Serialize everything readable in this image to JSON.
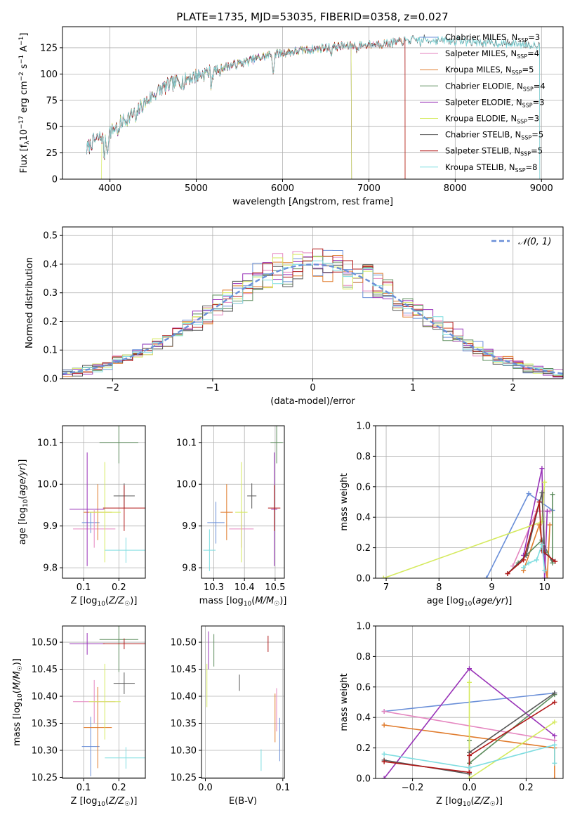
{
  "figure_title": "PLATE=1735, MJD=53035, FIBERID=0358, z=0.027",
  "colors": {
    "Chabrier MILES": "#6a8fd8",
    "Salpeter MILES": "#e587c0",
    "Kroupa MILES": "#e07b2c",
    "Chabrier ELODIE": "#5e8d5e",
    "Salpeter ELODIE": "#9933b8",
    "Kroupa ELODIE": "#d5ea5e",
    "Chabrier STELIB": "#585858",
    "Salpeter STELIB": "#b01818",
    "Kroupa STELIB": "#7fdde0",
    "gaussian": "#6a8fd8"
  },
  "chart_data": [
    {
      "type": "line",
      "id": "spectrum",
      "xlabel": "wavelength [Angstrom, rest frame]",
      "ylabel": "Flux [f_λ10^-17 erg cm^-2 s^-1 A^-1]",
      "xlim": [
        3450,
        9250
      ],
      "ylim": [
        0,
        145
      ],
      "xticks": [
        4000,
        5000,
        6000,
        7000,
        8000,
        9000
      ],
      "yticks": [
        0,
        25,
        50,
        75,
        100,
        125
      ],
      "legend_position": "top-right",
      "legend": [
        {
          "label": "Chabrier MILES, N",
          "sub": "SSP",
          "suffix": "=3",
          "model": "Chabrier MILES"
        },
        {
          "label": "Salpeter MILES, N",
          "sub": "SSP",
          "suffix": "=4",
          "model": "Salpeter MILES"
        },
        {
          "label": "Kroupa MILES, N",
          "sub": "SSP",
          "suffix": "=5",
          "model": "Kroupa MILES"
        },
        {
          "label": "Chabrier ELODIE, N",
          "sub": "SSP",
          "suffix": "=4",
          "model": "Chabrier ELODIE"
        },
        {
          "label": "Salpeter ELODIE, N",
          "sub": "SSP",
          "suffix": "=3",
          "model": "Salpeter ELODIE"
        },
        {
          "label": "Kroupa ELODIE, N",
          "sub": "SSP",
          "suffix": "=3",
          "model": "Kroupa ELODIE"
        },
        {
          "label": "Chabrier STELIB, N",
          "sub": "SSP",
          "suffix": "=5",
          "model": "Chabrier STELIB"
        },
        {
          "label": "Salpeter STELIB, N",
          "sub": "SSP",
          "suffix": "=5",
          "model": "Salpeter STELIB"
        },
        {
          "label": "Kroupa STELIB, N",
          "sub": "SSP",
          "suffix": "=8",
          "model": "Kroupa STELIB"
        }
      ],
      "continuum": {
        "x": [
          3730,
          3800,
          3900,
          4000,
          4100,
          4200,
          4300,
          4400,
          4500,
          4600,
          4700,
          4800,
          4900,
          5000,
          5100,
          5200,
          5300,
          5400,
          5500,
          5600,
          5700,
          5800,
          5900,
          6000,
          6200,
          6400,
          6600,
          6800,
          7000,
          7200,
          7400,
          7600
        ],
        "y": [
          28,
          36,
          40,
          45,
          52,
          58,
          64,
          72,
          80,
          86,
          90,
          93,
          96,
          98,
          101,
          103,
          106,
          108,
          110,
          112,
          115,
          117,
          119,
          120,
          122,
          124,
          126,
          127,
          128,
          129,
          131,
          133
        ]
      },
      "absorption_lines": [
        {
          "x": 3934,
          "depth": 20
        },
        {
          "x": 3969,
          "depth": 18
        },
        {
          "x": 4101,
          "depth": 10
        },
        {
          "x": 4305,
          "depth": 12
        },
        {
          "x": 4861,
          "depth": 6
        },
        {
          "x": 5175,
          "depth": 12
        },
        {
          "x": 5270,
          "depth": 5
        },
        {
          "x": 5893,
          "depth": 18
        },
        {
          "x": 6563,
          "depth": 6
        },
        {
          "x": 6867,
          "depth": 5
        },
        {
          "x": 7600,
          "depth": 6
        }
      ],
      "series_end": {
        "Chabrier MILES": 7420,
        "Salpeter MILES": 7420,
        "Kroupa MILES": 7420,
        "Chabrier ELODIE": 6800,
        "Salpeter ELODIE": 6800,
        "Kroupa ELODIE": 6800,
        "Chabrier STELIB": 8980,
        "Salpeter STELIB": 7420,
        "Kroupa STELIB": 8980
      },
      "series_start": {
        "Kroupa ELODIE": 3900
      }
    },
    {
      "type": "histogram",
      "id": "residuals",
      "xlabel": "(data-model)/error",
      "ylabel": "Normed distribution",
      "xlim": [
        -2.5,
        2.5
      ],
      "ylim": [
        0,
        0.53
      ],
      "xticks": [
        -2,
        -1,
        0,
        1,
        2
      ],
      "yticks": [
        0.0,
        0.1,
        0.2,
        0.3,
        0.4,
        0.5
      ],
      "bin_width": 0.1,
      "gaussian_label": "𝒩(0, 1)",
      "legend_position": "top-right"
    },
    {
      "type": "scatter",
      "id": "age_vs_z",
      "xlabel": "Z [log10(Z/Z☉)]",
      "ylabel": "age [log10(age/yr)]",
      "xlim": [
        0.04,
        0.275
      ],
      "ylim": [
        9.775,
        10.14
      ],
      "xticks": [
        0.1,
        0.2
      ],
      "yticks": [
        9.8,
        9.9,
        10.0,
        10.1
      ],
      "points": [
        {
          "model": "Chabrier MILES",
          "x": 0.12,
          "y": 9.908,
          "xerr": 0.025,
          "yerr": 0.025
        },
        {
          "model": "Salpeter MILES",
          "x": 0.13,
          "y": 9.893,
          "xerr": 0.06,
          "yerr": 0.045
        },
        {
          "model": "Kroupa MILES",
          "x": 0.14,
          "y": 9.933,
          "xerr": 0.04,
          "yerr": 0.067
        },
        {
          "model": "Chabrier ELODIE",
          "x": 0.2,
          "y": 10.1,
          "xerr": 0.055,
          "yerr": 0.05
        },
        {
          "model": "Salpeter ELODIE",
          "x": 0.11,
          "y": 9.94,
          "xerr": 0.05,
          "yerr": 0.136
        },
        {
          "model": "Kroupa ELODIE",
          "x": 0.16,
          "y": 9.933,
          "xerr": 0.045,
          "yerr": 0.12
        },
        {
          "model": "Chabrier STELIB",
          "x": 0.215,
          "y": 9.972,
          "xerr": 0.03,
          "yerr": 0.03
        },
        {
          "model": "Salpeter STELIB",
          "x": 0.215,
          "y": 9.943,
          "xerr": 0.06,
          "yerr": 0.055
        },
        {
          "model": "Kroupa STELIB",
          "x": 0.22,
          "y": 9.842,
          "xerr": 0.06,
          "yerr": 0.03
        }
      ]
    },
    {
      "type": "scatter",
      "id": "age_vs_mass",
      "xlabel": "mass [log10(M/M☉)]",
      "ylabel": "",
      "xlim": [
        10.26,
        10.53
      ],
      "ylim": [
        9.775,
        10.14
      ],
      "xticks": [
        10.3,
        10.4,
        10.5
      ],
      "yticks": [
        9.8,
        9.9,
        10.0,
        10.1
      ],
      "points": [
        {
          "model": "Chabrier MILES",
          "x": 10.307,
          "y": 9.908,
          "xerr": 0.028,
          "yerr": 0.05
        },
        {
          "model": "Salpeter MILES",
          "x": 10.39,
          "y": 9.893,
          "xerr": 0.04,
          "yerr": 0.045
        },
        {
          "model": "Kroupa MILES",
          "x": 10.342,
          "y": 9.933,
          "xerr": 0.02,
          "yerr": 0.067
        },
        {
          "model": "Chabrier ELODIE",
          "x": 10.505,
          "y": 10.1,
          "xerr": 0.02,
          "yerr": 0.05
        },
        {
          "model": "Salpeter ELODIE",
          "x": 10.497,
          "y": 9.94,
          "xerr": 0.01,
          "yerr": 0.136
        },
        {
          "model": "Kroupa ELODIE",
          "x": 10.39,
          "y": 9.933,
          "xerr": 0.02,
          "yerr": 0.12
        },
        {
          "model": "Chabrier STELIB",
          "x": 10.424,
          "y": 9.972,
          "xerr": 0.015,
          "yerr": 0.03
        },
        {
          "model": "Salpeter STELIB",
          "x": 10.497,
          "y": 9.943,
          "xerr": 0.02,
          "yerr": 0.055
        },
        {
          "model": "Kroupa STELIB",
          "x": 10.286,
          "y": 9.842,
          "xerr": 0.02,
          "yerr": 0.05
        }
      ]
    },
    {
      "type": "line",
      "id": "weight_vs_age",
      "xlabel": "age [log10(age/yr)]",
      "ylabel": "mass weight",
      "xlim": [
        6.8,
        10.35
      ],
      "ylim": [
        0,
        1.0
      ],
      "xticks": [
        7,
        8,
        9,
        10
      ],
      "yticks": [
        0.0,
        0.2,
        0.4,
        0.6,
        0.8,
        1.0
      ],
      "series": [
        {
          "model": "Chabrier MILES",
          "x": [
            8.9,
            9.7,
            10.15
          ],
          "y": [
            0.0,
            0.555,
            0.445
          ]
        },
        {
          "model": "Salpeter MILES",
          "x": [
            9.4,
            9.85,
            10.1
          ],
          "y": [
            0.08,
            0.44,
            0.44
          ]
        },
        {
          "model": "Kroupa MILES",
          "x": [
            9.6,
            9.9,
            10.05,
            10.1
          ],
          "y": [
            0.05,
            0.35,
            0.0,
            0.35
          ]
        },
        {
          "model": "Chabrier ELODIE",
          "x": [
            9.5,
            9.95,
            10.15,
            10.15
          ],
          "y": [
            0.1,
            0.25,
            0.1,
            0.55
          ]
        },
        {
          "model": "Salpeter ELODIE",
          "x": [
            9.6,
            9.95,
            10.0,
            10.05
          ],
          "y": [
            0.15,
            0.72,
            0.0,
            0.44
          ]
        },
        {
          "model": "Kroupa ELODIE",
          "x": [
            6.95,
            9.95,
            10.0
          ],
          "y": [
            0.0,
            0.37,
            0.63
          ]
        },
        {
          "model": "Chabrier STELIB",
          "x": [
            9.3,
            9.65,
            9.95,
            10.0,
            10.15
          ],
          "y": [
            0.03,
            0.15,
            0.56,
            0.17,
            0.12
          ]
        },
        {
          "model": "Salpeter STELIB",
          "x": [
            9.3,
            9.6,
            9.9,
            9.95,
            10.2
          ],
          "y": [
            0.03,
            0.12,
            0.5,
            0.18,
            0.11
          ]
        },
        {
          "model": "Kroupa STELIB",
          "x": [
            9.6,
            9.7,
            9.85,
            9.95,
            10.0
          ],
          "y": [
            0.07,
            0.1,
            0.12,
            0.22,
            0.05
          ]
        }
      ]
    },
    {
      "type": "scatter",
      "id": "mass_vs_z",
      "xlabel": "Z [log10(Z/Z☉)]",
      "ylabel": "mass [log10(M/M☉)]",
      "xlim": [
        0.04,
        0.275
      ],
      "ylim": [
        10.248,
        10.53
      ],
      "xticks": [
        0.1,
        0.2
      ],
      "yticks": [
        10.25,
        10.3,
        10.35,
        10.4,
        10.45,
        10.5
      ],
      "points": [
        {
          "model": "Chabrier MILES",
          "x": 0.12,
          "y": 10.307,
          "xerr": 0.025,
          "yerr": 0.055
        },
        {
          "model": "Salpeter MILES",
          "x": 0.13,
          "y": 10.39,
          "xerr": 0.06,
          "yerr": 0.04
        },
        {
          "model": "Kroupa MILES",
          "x": 0.14,
          "y": 10.342,
          "xerr": 0.04,
          "yerr": 0.075
        },
        {
          "model": "Chabrier ELODIE",
          "x": 0.2,
          "y": 10.505,
          "xerr": 0.055,
          "yerr": 0.06
        },
        {
          "model": "Salpeter ELODIE",
          "x": 0.11,
          "y": 10.497,
          "xerr": 0.05,
          "yerr": 0.02
        },
        {
          "model": "Kroupa ELODIE",
          "x": 0.16,
          "y": 10.39,
          "xerr": 0.045,
          "yerr": 0.07
        },
        {
          "model": "Chabrier STELIB",
          "x": 0.215,
          "y": 10.424,
          "xerr": 0.03,
          "yerr": 0.02
        },
        {
          "model": "Salpeter STELIB",
          "x": 0.215,
          "y": 10.497,
          "xerr": 0.06,
          "yerr": 0.01
        },
        {
          "model": "Kroupa STELIB",
          "x": 0.22,
          "y": 10.286,
          "xerr": 0.06,
          "yerr": 0.02
        }
      ]
    },
    {
      "type": "scatter",
      "id": "mass_vs_ebv",
      "xlabel": "E(B-V)",
      "ylabel": "",
      "xlim": [
        -0.005,
        0.102
      ],
      "ylim": [
        10.248,
        10.53
      ],
      "xticks": [
        0.0,
        0.1
      ],
      "yticks": [
        10.25,
        10.3,
        10.35,
        10.4,
        10.45,
        10.5
      ],
      "points": [
        {
          "model": "Chabrier MILES",
          "x": 0.096,
          "y": 10.32,
          "xerr": 0,
          "yerr": 0.04
        },
        {
          "model": "Salpeter MILES",
          "x": 0.092,
          "y": 10.375,
          "xerr": 0,
          "yerr": 0.04
        },
        {
          "model": "Kroupa MILES",
          "x": 0.09,
          "y": 10.36,
          "xerr": 0,
          "yerr": 0.045
        },
        {
          "model": "Chabrier ELODIE",
          "x": 0.011,
          "y": 10.485,
          "xerr": 0,
          "yerr": 0.03
        },
        {
          "model": "Salpeter ELODIE",
          "x": 0.004,
          "y": 10.485,
          "xerr": 0,
          "yerr": 0.035
        },
        {
          "model": "Kroupa ELODIE",
          "x": 0.002,
          "y": 10.42,
          "xerr": 0,
          "yerr": 0.04
        },
        {
          "model": "Chabrier STELIB",
          "x": 0.044,
          "y": 10.425,
          "xerr": 0,
          "yerr": 0.015
        },
        {
          "model": "Salpeter STELIB",
          "x": 0.081,
          "y": 10.497,
          "xerr": 0,
          "yerr": 0.015
        },
        {
          "model": "Kroupa STELIB",
          "x": 0.072,
          "y": 10.282,
          "xerr": 0,
          "yerr": 0.02
        }
      ]
    },
    {
      "type": "line",
      "id": "weight_vs_z",
      "xlabel": "Z [log10(Z/Z☉)]",
      "ylabel": "mass weight",
      "xlim": [
        -0.33,
        0.33
      ],
      "ylim": [
        0,
        1.0
      ],
      "xticks": [
        -0.2,
        0.0,
        0.2
      ],
      "yticks": [
        0.0,
        0.2,
        0.4,
        0.6,
        0.8,
        1.0
      ],
      "series": [
        {
          "model": "Chabrier MILES",
          "x": [
            -0.3,
            0.3
          ],
          "y": [
            0.44,
            0.56
          ]
        },
        {
          "model": "Salpeter MILES",
          "x": [
            -0.3,
            0.3
          ],
          "y": [
            0.44,
            0.25
          ]
        },
        {
          "model": "Kroupa MILES",
          "x": [
            -0.3,
            0.3,
            0.3
          ],
          "y": [
            0.35,
            0.2,
            0.0
          ]
        },
        {
          "model": "Chabrier ELODIE",
          "x": [
            0.0,
            0.0,
            0.3
          ],
          "y": [
            0.25,
            0.1,
            0.55
          ]
        },
        {
          "model": "Salpeter ELODIE",
          "x": [
            -0.3,
            0.0,
            0.3
          ],
          "y": [
            0.0,
            0.72,
            0.28
          ]
        },
        {
          "model": "Kroupa ELODIE",
          "x": [
            0.0,
            0.0,
            0.3
          ],
          "y": [
            0.63,
            0.0,
            0.37
          ]
        },
        {
          "model": "Chabrier STELIB",
          "x": [
            -0.3,
            0.0,
            0.0,
            0.3
          ],
          "y": [
            0.12,
            0.03,
            0.17,
            0.56
          ]
        },
        {
          "model": "Salpeter STELIB",
          "x": [
            -0.3,
            0.0,
            0.0,
            0.3
          ],
          "y": [
            0.11,
            0.04,
            0.15,
            0.5
          ]
        },
        {
          "model": "Kroupa STELIB",
          "x": [
            -0.3,
            0.0,
            0.3,
            0.3
          ],
          "y": [
            0.16,
            0.07,
            0.22,
            0.1
          ]
        }
      ]
    }
  ]
}
